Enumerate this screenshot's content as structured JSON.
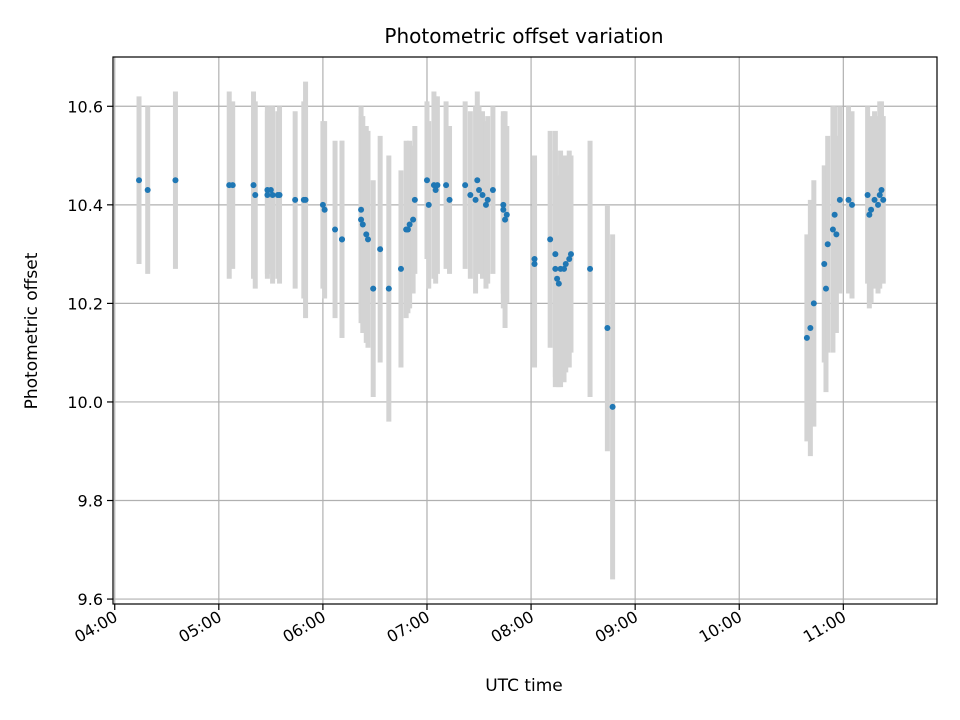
{
  "chart_data": {
    "type": "scatter",
    "title": "Photometric offset variation",
    "xlabel": "UTC time",
    "ylabel": "Photometric offset",
    "x_ticks": [
      "04:00",
      "05:00",
      "06:00",
      "07:00",
      "08:00",
      "09:00",
      "10:00",
      "11:00"
    ],
    "y_ticks": [
      "9.6",
      "9.8",
      "10.0",
      "10.2",
      "10.4",
      "10.6"
    ],
    "xlim": [
      "03:59",
      "11:54"
    ],
    "ylim": [
      9.59,
      10.7
    ],
    "grid": true,
    "colors": {
      "points": "#1f77b4",
      "errorbars": "#d3d3d3",
      "grid": "#b0b0b0"
    },
    "series": [
      {
        "x": [
          "04:14",
          "04:19",
          "04:35",
          "05:06",
          "05:08",
          "05:20",
          "05:21",
          "05:28",
          "05:28",
          "05:30",
          "05:31",
          "05:34",
          "05:35",
          "05:44",
          "05:49",
          "05:50",
          "06:00",
          "06:01",
          "06:07",
          "06:11",
          "06:11",
          "06:22",
          "06:22",
          "06:23",
          "06:25",
          "06:26",
          "06:29",
          "06:33",
          "06:38",
          "06:45",
          "06:48",
          "06:49",
          "06:50",
          "06:52",
          "06:53",
          "07:00",
          "07:01",
          "07:04",
          "07:05",
          "07:06",
          "07:11",
          "07:13",
          "07:22",
          "07:25",
          "07:28",
          "07:29",
          "07:30",
          "07:32",
          "07:34",
          "07:35",
          "07:38",
          "07:44",
          "07:44",
          "07:45",
          "07:46",
          "08:02",
          "08:02",
          "08:11",
          "08:14",
          "08:14",
          "08:15",
          "08:16",
          "08:17",
          "08:19",
          "08:20",
          "08:22",
          "08:23",
          "08:34",
          "08:44",
          "08:47",
          "10:39",
          "10:41",
          "10:43",
          "10:49",
          "10:50",
          "10:51",
          "10:54",
          "10:55",
          "10:56",
          "10:58",
          "11:03",
          "11:05",
          "11:14",
          "11:15",
          "11:16",
          "11:18",
          "11:20",
          "11:21",
          "11:22",
          "11:23"
        ],
        "y": [
          10.45,
          10.43,
          10.45,
          10.44,
          10.44,
          10.44,
          10.42,
          10.43,
          10.42,
          10.43,
          10.42,
          10.42,
          10.42,
          10.41,
          10.41,
          10.41,
          10.4,
          10.39,
          10.35,
          10.33,
          10.33,
          10.39,
          10.37,
          10.36,
          10.34,
          10.33,
          10.23,
          10.31,
          10.23,
          10.27,
          10.35,
          10.35,
          10.36,
          10.37,
          10.41,
          10.45,
          10.4,
          10.44,
          10.43,
          10.44,
          10.44,
          10.41,
          10.44,
          10.42,
          10.41,
          10.45,
          10.43,
          10.42,
          10.4,
          10.41,
          10.43,
          10.4,
          10.39,
          10.37,
          10.38,
          10.28,
          10.29,
          10.33,
          10.27,
          10.3,
          10.25,
          10.24,
          10.27,
          10.27,
          10.28,
          10.29,
          10.3,
          10.27,
          10.15,
          9.99,
          10.13,
          10.15,
          10.2,
          10.28,
          10.23,
          10.32,
          10.35,
          10.38,
          10.34,
          10.41,
          10.41,
          10.4,
          10.42,
          10.38,
          10.39,
          10.41,
          10.4,
          10.42,
          10.43,
          10.41
        ],
        "err": [
          0.17,
          0.17,
          0.18,
          0.19,
          0.17,
          0.19,
          0.19,
          0.17,
          0.17,
          0.17,
          0.18,
          0.17,
          0.18,
          0.18,
          0.2,
          0.24,
          0.17,
          0.18,
          0.18,
          0.2,
          0.2,
          0.21,
          0.21,
          0.22,
          0.22,
          0.22,
          0.22,
          0.23,
          0.27,
          0.2,
          0.18,
          0.17,
          0.17,
          0.15,
          0.15,
          0.16,
          0.17,
          0.19,
          0.19,
          0.18,
          0.17,
          0.15,
          0.17,
          0.17,
          0.19,
          0.18,
          0.17,
          0.17,
          0.17,
          0.17,
          0.17,
          0.18,
          0.2,
          0.22,
          0.18,
          0.21,
          0.21,
          0.22,
          0.24,
          0.25,
          0.21,
          0.21,
          0.24,
          0.23,
          0.22,
          0.22,
          0.2,
          0.26,
          0.25,
          0.35,
          0.21,
          0.26,
          0.25,
          0.2,
          0.21,
          0.22,
          0.25,
          0.22,
          0.2,
          0.19,
          0.19,
          0.19,
          0.18,
          0.19,
          0.19,
          0.18,
          0.18,
          0.19,
          0.18,
          0.17
        ]
      }
    ]
  }
}
